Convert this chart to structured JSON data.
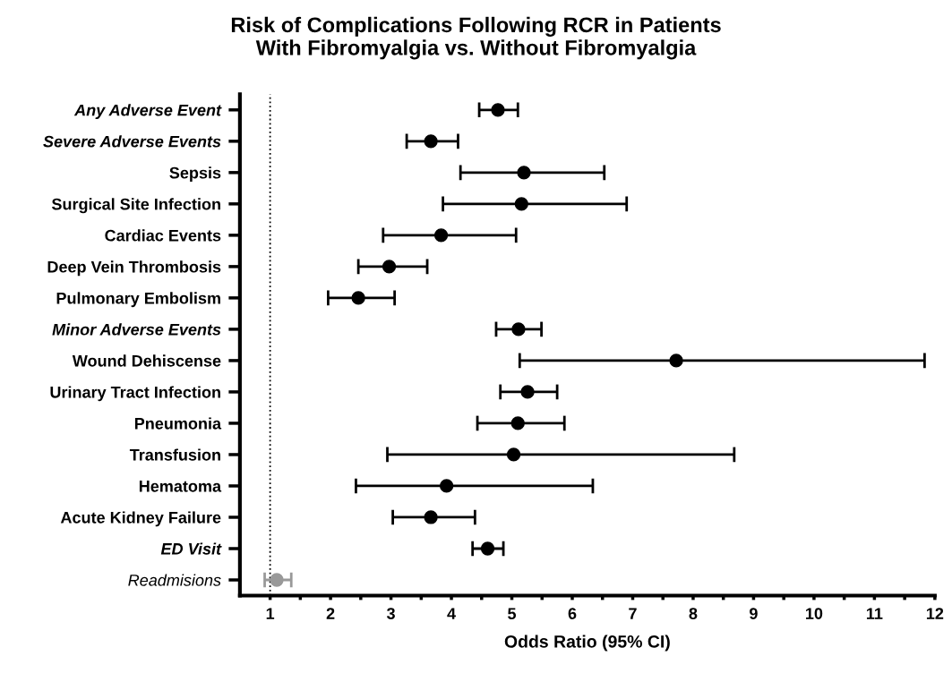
{
  "chart_data": {
    "type": "scatter",
    "orientation": "horizontal",
    "title": "Risk of Complications Following RCR in Patients\nWith Fibromyalgia vs. Without Fibromyalgia",
    "xlabel": "Odds Ratio (95% CI)",
    "categories": [
      "Any Adverse Event",
      "Severe Adverse Events",
      "Sepsis",
      "Surgical Site Infection",
      "Cardiac Events",
      "Deep Vein Thrombosis",
      "Pulmonary Embolism",
      "Minor Adverse Events",
      "Wound Dehiscense",
      "Urinary Tract Infection",
      "Pneumonia",
      "Transfusion",
      "Hematoma",
      "Acute Kidney Failure",
      "ED Visit",
      "Readmisions"
    ],
    "values": [
      4.77,
      3.66,
      5.2,
      5.16,
      3.83,
      2.97,
      2.46,
      5.11,
      7.72,
      5.26,
      5.1,
      5.03,
      3.92,
      3.66,
      4.6,
      1.11
    ],
    "errors": [
      [
        4.46,
        5.1
      ],
      [
        3.26,
        4.11
      ],
      [
        4.15,
        6.53
      ],
      [
        3.86,
        6.9
      ],
      [
        2.87,
        5.07
      ],
      [
        2.46,
        3.6
      ],
      [
        1.96,
        3.06
      ],
      [
        4.74,
        5.49
      ],
      [
        5.13,
        11.83
      ],
      [
        4.81,
        5.75
      ],
      [
        4.43,
        5.87
      ],
      [
        2.94,
        8.68
      ],
      [
        2.42,
        6.34
      ],
      [
        3.03,
        4.39
      ],
      [
        4.35,
        4.86
      ],
      [
        0.91,
        1.35
      ]
    ],
    "colors": [
      "#000000",
      "#000000",
      "#000000",
      "#000000",
      "#000000",
      "#000000",
      "#000000",
      "#000000",
      "#000000",
      "#000000",
      "#000000",
      "#000000",
      "#000000",
      "#000000",
      "#000000",
      "#999999"
    ],
    "xlim": [
      0.5,
      12
    ],
    "xticks": [
      1,
      {
        "value": 1.5,
        "label": null
      },
      2,
      {
        "value": 2.5,
        "label": null
      },
      3,
      {
        "value": 3.5,
        "label": null
      },
      4,
      {
        "value": 4.5,
        "label": null
      },
      5,
      {
        "value": 5.5,
        "label": null
      },
      6,
      {
        "value": 6.5,
        "label": null
      },
      7,
      {
        "value": 7.5,
        "label": null
      },
      8,
      {
        "value": 8.5,
        "label": null
      },
      9,
      {
        "value": 9.5,
        "label": null
      },
      10,
      {
        "value": 10.5,
        "label": null
      },
      11,
      {
        "value": 11.5,
        "label": null
      },
      12
    ],
    "ref_lines": [
      {
        "axis": "x",
        "value": 1,
        "color": "#000000",
        "line_style": "dotted"
      }
    ],
    "marker": "circle",
    "grid": false
  }
}
